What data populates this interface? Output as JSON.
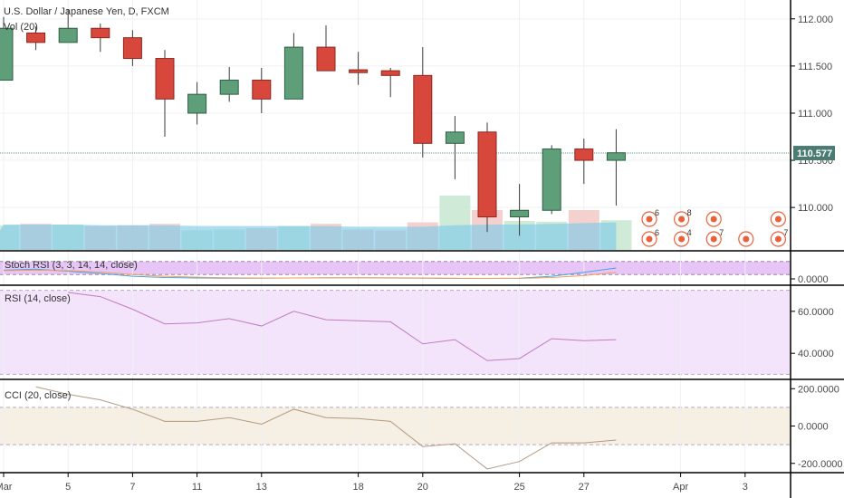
{
  "chart_data": {
    "type": "candlestick",
    "title": "U.S. Dollar / Japanese Yen, D, FXCM",
    "volume_label": "Vol (20)",
    "last_price_label": "110.577",
    "last_price": 110.577,
    "price_ylim": [
      109.55,
      112.2
    ],
    "price_ticks": [
      "112.000",
      "111.500",
      "111.000",
      "110.500",
      "110.000"
    ],
    "price_tick_values": [
      112.0,
      111.5,
      111.0,
      110.5,
      110.0
    ],
    "x_tick_labels": [
      {
        "label": "Mar",
        "index": 0
      },
      {
        "label": "5",
        "index": 2
      },
      {
        "label": "7",
        "index": 4
      },
      {
        "label": "11",
        "index": 6
      },
      {
        "label": "13",
        "index": 8
      },
      {
        "label": "18",
        "index": 11
      },
      {
        "label": "20",
        "index": 13
      },
      {
        "label": "25",
        "index": 16
      },
      {
        "label": "27",
        "index": 18
      },
      {
        "label": "Apr",
        "index": 21
      },
      {
        "label": "3",
        "index": 23
      }
    ],
    "candles": [
      {
        "open": 111.35,
        "high": 112.02,
        "low": 111.35,
        "close": 111.9
      },
      {
        "open": 111.85,
        "high": 111.92,
        "low": 111.67,
        "close": 111.75
      },
      {
        "open": 111.75,
        "high": 112.1,
        "low": 111.75,
        "close": 111.9
      },
      {
        "open": 111.9,
        "high": 111.95,
        "low": 111.65,
        "close": 111.8
      },
      {
        "open": 111.8,
        "high": 111.88,
        "low": 111.5,
        "close": 111.58
      },
      {
        "open": 111.58,
        "high": 111.67,
        "low": 110.75,
        "close": 111.15
      },
      {
        "open": 111.0,
        "high": 111.33,
        "low": 110.88,
        "close": 111.2
      },
      {
        "open": 111.2,
        "high": 111.49,
        "low": 111.12,
        "close": 111.35
      },
      {
        "open": 111.35,
        "high": 111.48,
        "low": 111.0,
        "close": 111.15
      },
      {
        "open": 111.15,
        "high": 111.85,
        "low": 111.15,
        "close": 111.7
      },
      {
        "open": 111.7,
        "high": 111.93,
        "low": 111.45,
        "close": 111.45
      },
      {
        "open": 111.46,
        "high": 111.65,
        "low": 111.3,
        "close": 111.43
      },
      {
        "open": 111.45,
        "high": 111.48,
        "low": 111.17,
        "close": 111.4
      },
      {
        "open": 111.4,
        "high": 111.7,
        "low": 110.53,
        "close": 110.68
      },
      {
        "open": 110.68,
        "high": 110.97,
        "low": 110.3,
        "close": 110.8
      },
      {
        "open": 110.8,
        "high": 110.9,
        "low": 109.74,
        "close": 109.9
      },
      {
        "open": 109.9,
        "high": 110.25,
        "low": 109.7,
        "close": 109.97
      },
      {
        "open": 109.97,
        "high": 110.66,
        "low": 109.93,
        "close": 110.62
      },
      {
        "open": 110.62,
        "high": 110.73,
        "low": 110.25,
        "close": 110.5
      },
      {
        "open": 110.5,
        "high": 110.83,
        "low": 110.02,
        "close": 110.58
      }
    ],
    "volume": [
      0.34,
      0.36,
      0.35,
      0.33,
      0.34,
      0.36,
      0.27,
      0.28,
      0.3,
      0.33,
      0.36,
      0.28,
      0.27,
      0.38,
      0.75,
      0.55,
      0.4,
      0.39,
      0.55,
      0.41
    ],
    "volume_ma": [
      0.35,
      0.35,
      0.35,
      0.34,
      0.34,
      0.34,
      0.33,
      0.33,
      0.33,
      0.33,
      0.33,
      0.32,
      0.32,
      0.32,
      0.34,
      0.35,
      0.35,
      0.36,
      0.37,
      0.38
    ],
    "event_markers": [
      {
        "index": 20,
        "row": 0,
        "badge": "6"
      },
      {
        "index": 21,
        "row": 0,
        "badge": "8"
      },
      {
        "index": 22,
        "row": 0,
        "badge": ""
      },
      {
        "index": 24,
        "row": 0,
        "badge": ""
      },
      {
        "index": 20,
        "row": 1,
        "badge": "6"
      },
      {
        "index": 21,
        "row": 1,
        "badge": "4"
      },
      {
        "index": 22,
        "row": 1,
        "badge": "7"
      },
      {
        "index": 23,
        "row": 1,
        "badge": ""
      },
      {
        "index": 24,
        "row": 1,
        "badge": "7"
      }
    ],
    "stoch": {
      "label": "Stoch RSI (3, 3, 14, 14, close)",
      "ylim": [
        0,
        100
      ],
      "ticks": [
        "0.0000"
      ],
      "tick_values": [
        0
      ],
      "band": [
        20,
        80
      ],
      "k": [
        40,
        45,
        35,
        25,
        12,
        6,
        4,
        3,
        3,
        4,
        5,
        5,
        4,
        3,
        2,
        2,
        3,
        12,
        30,
        50
      ],
      "d": [
        38,
        40,
        38,
        32,
        20,
        12,
        8,
        5,
        4,
        4,
        4,
        5,
        5,
        4,
        3,
        2,
        2,
        6,
        15,
        30
      ]
    },
    "rsi": {
      "label": "RSI (14, close)",
      "ylim": [
        28,
        72
      ],
      "ticks": [
        "60.0000",
        "40.0000"
      ],
      "tick_values": [
        60,
        40
      ],
      "band": [
        30,
        70
      ],
      "values": [
        69,
        67,
        61,
        54,
        54.5,
        56.5,
        53,
        60,
        56,
        55.5,
        55,
        44.5,
        46.5,
        36.5,
        37.5,
        47,
        46,
        46.5
      ]
    },
    "cci": {
      "label": "CCI (20, close)",
      "ylim": [
        -240,
        245
      ],
      "ticks": [
        "200.0000",
        "0.0000",
        "-200.0000"
      ],
      "tick_values": [
        200,
        0,
        -200
      ],
      "band": [
        -100,
        100
      ],
      "values": [
        210,
        170,
        140,
        90,
        25,
        25,
        45,
        10,
        90,
        45,
        40,
        25,
        -110,
        -95,
        -230,
        -190,
        -90,
        -90,
        -75
      ]
    }
  }
}
